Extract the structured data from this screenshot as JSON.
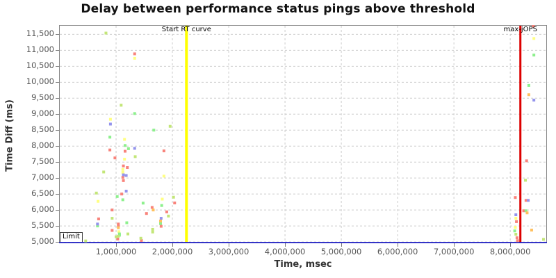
{
  "chart_data": {
    "type": "scatter",
    "title": "Delay between performance status pings above threshold",
    "xlabel": "Time, msec",
    "ylabel": "Time Diff (ms)",
    "xlim": [
      0,
      8640000
    ],
    "ylim": [
      4980,
      11770
    ],
    "x_ticks": [
      1000000,
      2000000,
      3000000,
      4000000,
      5000000,
      6000000,
      7000000,
      8000000
    ],
    "y_ticks": [
      5000,
      5500,
      6000,
      6500,
      7000,
      7500,
      8000,
      8500,
      9000,
      9500,
      10000,
      10500,
      11000,
      11500
    ],
    "grid": {
      "style": "dashed",
      "color": "#cccccc"
    },
    "legend": "none",
    "marker": {
      "shape": "square",
      "size": 4
    },
    "annotations": {
      "start_rt_line": {
        "type": "vline",
        "x": 2250000,
        "label": "Start RT curve",
        "color": "#ffff00",
        "width": 4
      },
      "max_jops_line": {
        "type": "vline",
        "x": 8180000,
        "label": "max-jOPS",
        "color": "#dd0000",
        "width": 3
      },
      "limit_line": {
        "type": "hline",
        "y": 5000,
        "label": "Limit",
        "color": "#2626c4",
        "width": 2
      }
    },
    "series": [
      {
        "name": "red",
        "color": "#f8837b",
        "points": [
          [
            1330000,
            10890
          ],
          [
            890000,
            7880
          ],
          [
            1160000,
            7840
          ],
          [
            1850000,
            7850
          ],
          [
            980000,
            7630
          ],
          [
            1130000,
            7380
          ],
          [
            1200000,
            7330
          ],
          [
            1120000,
            7020
          ],
          [
            1130000,
            6920
          ],
          [
            1100000,
            6500
          ],
          [
            2040000,
            6220
          ],
          [
            1640000,
            6080
          ],
          [
            930000,
            6000
          ],
          [
            1900000,
            5940
          ],
          [
            1540000,
            5890
          ],
          [
            690000,
            5720
          ],
          [
            1040000,
            5560
          ],
          [
            1040000,
            5500
          ],
          [
            1800000,
            5490
          ],
          [
            930000,
            5360
          ],
          [
            1030000,
            5090
          ],
          [
            1450000,
            5045
          ],
          [
            8410000,
            11760
          ],
          [
            8290000,
            7540
          ],
          [
            8090000,
            6390
          ],
          [
            8280000,
            6300
          ],
          [
            8240000,
            5975
          ],
          [
            8110000,
            5635
          ],
          [
            8120000,
            5130
          ],
          [
            8130000,
            5040
          ]
        ]
      },
      {
        "name": "yellow",
        "color": "#ffff84",
        "points": [
          [
            1330000,
            10750
          ],
          [
            900000,
            8840
          ],
          [
            1150000,
            8210
          ],
          [
            1150000,
            7590
          ],
          [
            1120000,
            7270
          ],
          [
            1120000,
            7180
          ],
          [
            1850000,
            7060
          ],
          [
            1820000,
            6340
          ],
          [
            680000,
            6270
          ],
          [
            1050000,
            5320
          ],
          [
            8420000,
            11370
          ],
          [
            8100000,
            5740
          ],
          [
            8090000,
            5455
          ]
        ]
      },
      {
        "name": "green",
        "color": "#8df08d",
        "points": [
          [
            1330000,
            9020
          ],
          [
            1670000,
            8500
          ],
          [
            890000,
            8280
          ],
          [
            1160000,
            8020
          ],
          [
            1220000,
            7920
          ],
          [
            1020000,
            6420
          ],
          [
            1120000,
            6320
          ],
          [
            1480000,
            6215
          ],
          [
            1810000,
            6140
          ],
          [
            1190000,
            5600
          ],
          [
            1790000,
            5575
          ],
          [
            670000,
            5500
          ],
          [
            1060000,
            5250
          ],
          [
            1060000,
            5210
          ],
          [
            8420000,
            10850
          ],
          [
            8330000,
            9900
          ],
          [
            8280000,
            5975
          ],
          [
            8080000,
            5345
          ]
        ]
      },
      {
        "name": "yellow-green",
        "color": "#c3e678",
        "points": [
          [
            820000,
            11540
          ],
          [
            1090000,
            9280
          ],
          [
            1960000,
            8620
          ],
          [
            1340000,
            7670
          ],
          [
            780000,
            7190
          ],
          [
            650000,
            6530
          ],
          [
            2020000,
            6400
          ],
          [
            1930000,
            5810
          ],
          [
            930000,
            5740
          ],
          [
            1650000,
            5395
          ],
          [
            1650000,
            5310
          ],
          [
            1210000,
            5250
          ],
          [
            1040000,
            5180
          ],
          [
            1000000,
            5160
          ],
          [
            1440000,
            5115
          ],
          [
            460000,
            5030
          ],
          [
            8270000,
            6930
          ],
          [
            8100000,
            5240
          ],
          [
            8590000,
            5080
          ]
        ]
      },
      {
        "name": "blue",
        "color": "#9494ec",
        "points": [
          [
            900000,
            8690
          ],
          [
            1330000,
            7930
          ],
          [
            1130000,
            7100
          ],
          [
            1180000,
            7080
          ],
          [
            1180000,
            6590
          ],
          [
            1800000,
            5740
          ],
          [
            670000,
            5560
          ],
          [
            8420000,
            9440
          ],
          [
            8320000,
            6300
          ],
          [
            8100000,
            5850
          ]
        ]
      },
      {
        "name": "orange",
        "color": "#ffc05e",
        "points": [
          [
            1660000,
            6000
          ],
          [
            1790000,
            5655
          ],
          [
            1040000,
            5445
          ],
          [
            8330000,
            9610
          ],
          [
            8300000,
            5910
          ],
          [
            8380000,
            5370
          ]
        ]
      }
    ]
  }
}
